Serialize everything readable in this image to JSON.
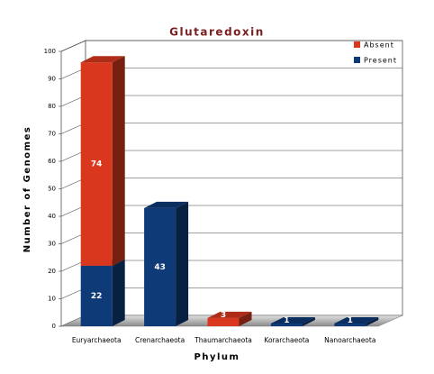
{
  "chart_data": {
    "type": "bar",
    "stacked": true,
    "title": "Glutaredoxin",
    "x_label": "Phylum",
    "y_label": "Number of Genomes",
    "categories": [
      "Euryarchaeota",
      "Crenarchaeota",
      "Thaumarchaeota",
      "Korarchaeota",
      "Nanoarchaeota"
    ],
    "series": [
      {
        "name": "Absent",
        "color": "#d9381e",
        "values": [
          74,
          0,
          3,
          0,
          0
        ]
      },
      {
        "name": "Present",
        "color": "#0e3a78",
        "values": [
          22,
          43,
          0,
          1,
          1
        ]
      }
    ],
    "ylim": [
      0,
      100
    ],
    "yticks": [
      0,
      10,
      20,
      30,
      40,
      50,
      60,
      70,
      80,
      90,
      100
    ],
    "grid": true,
    "legend": "top-right"
  }
}
